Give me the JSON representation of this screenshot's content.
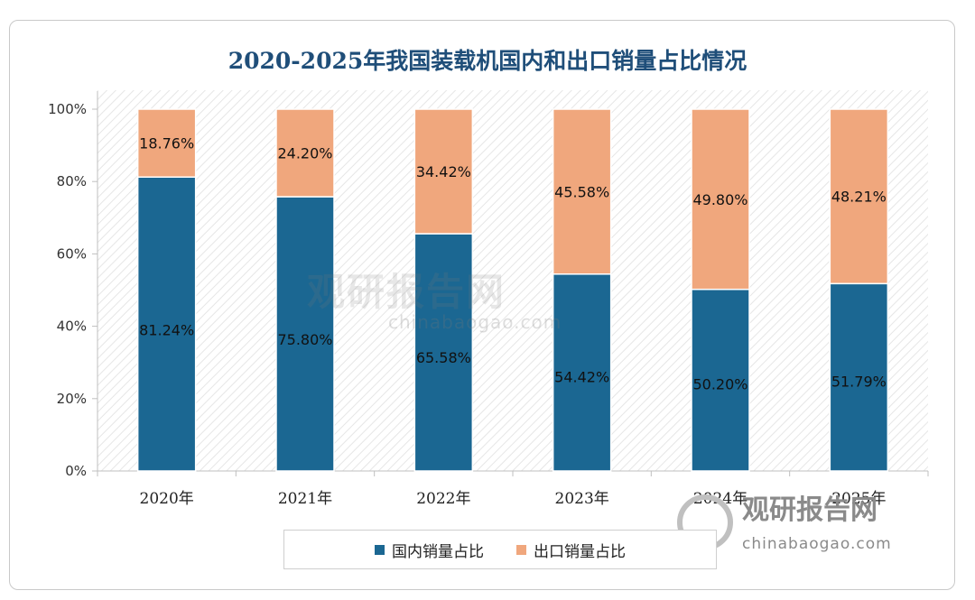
{
  "chart_data": {
    "type": "bar",
    "stacked": true,
    "title": "2020-2025年我国装载机国内和出口销量占比情况",
    "categories": [
      "2020年",
      "2021年",
      "2022年",
      "2023年",
      "2024年",
      "2025年"
    ],
    "series": [
      {
        "name": "国内销量占比",
        "color": "#1b6792",
        "values": [
          81.24,
          75.8,
          65.58,
          54.42,
          50.2,
          51.79
        ],
        "labels": [
          "81.24%",
          "75.80%",
          "65.58%",
          "54.42%",
          "50.20%",
          "51.79%"
        ]
      },
      {
        "name": "出口销量占比",
        "color": "#f0a77d",
        "values": [
          18.76,
          24.2,
          34.42,
          45.58,
          49.8,
          48.21
        ],
        "labels": [
          "18.76%",
          "24.20%",
          "34.42%",
          "45.58%",
          "49.80%",
          "48.21%"
        ]
      }
    ],
    "yticks": [
      "0%",
      "20%",
      "40%",
      "60%",
      "80%",
      "100%"
    ],
    "ylim": [
      0,
      100
    ],
    "legend_position": "bottom"
  },
  "watermark": {
    "brand": "观研报告网",
    "url": "chinabaogao.com"
  }
}
